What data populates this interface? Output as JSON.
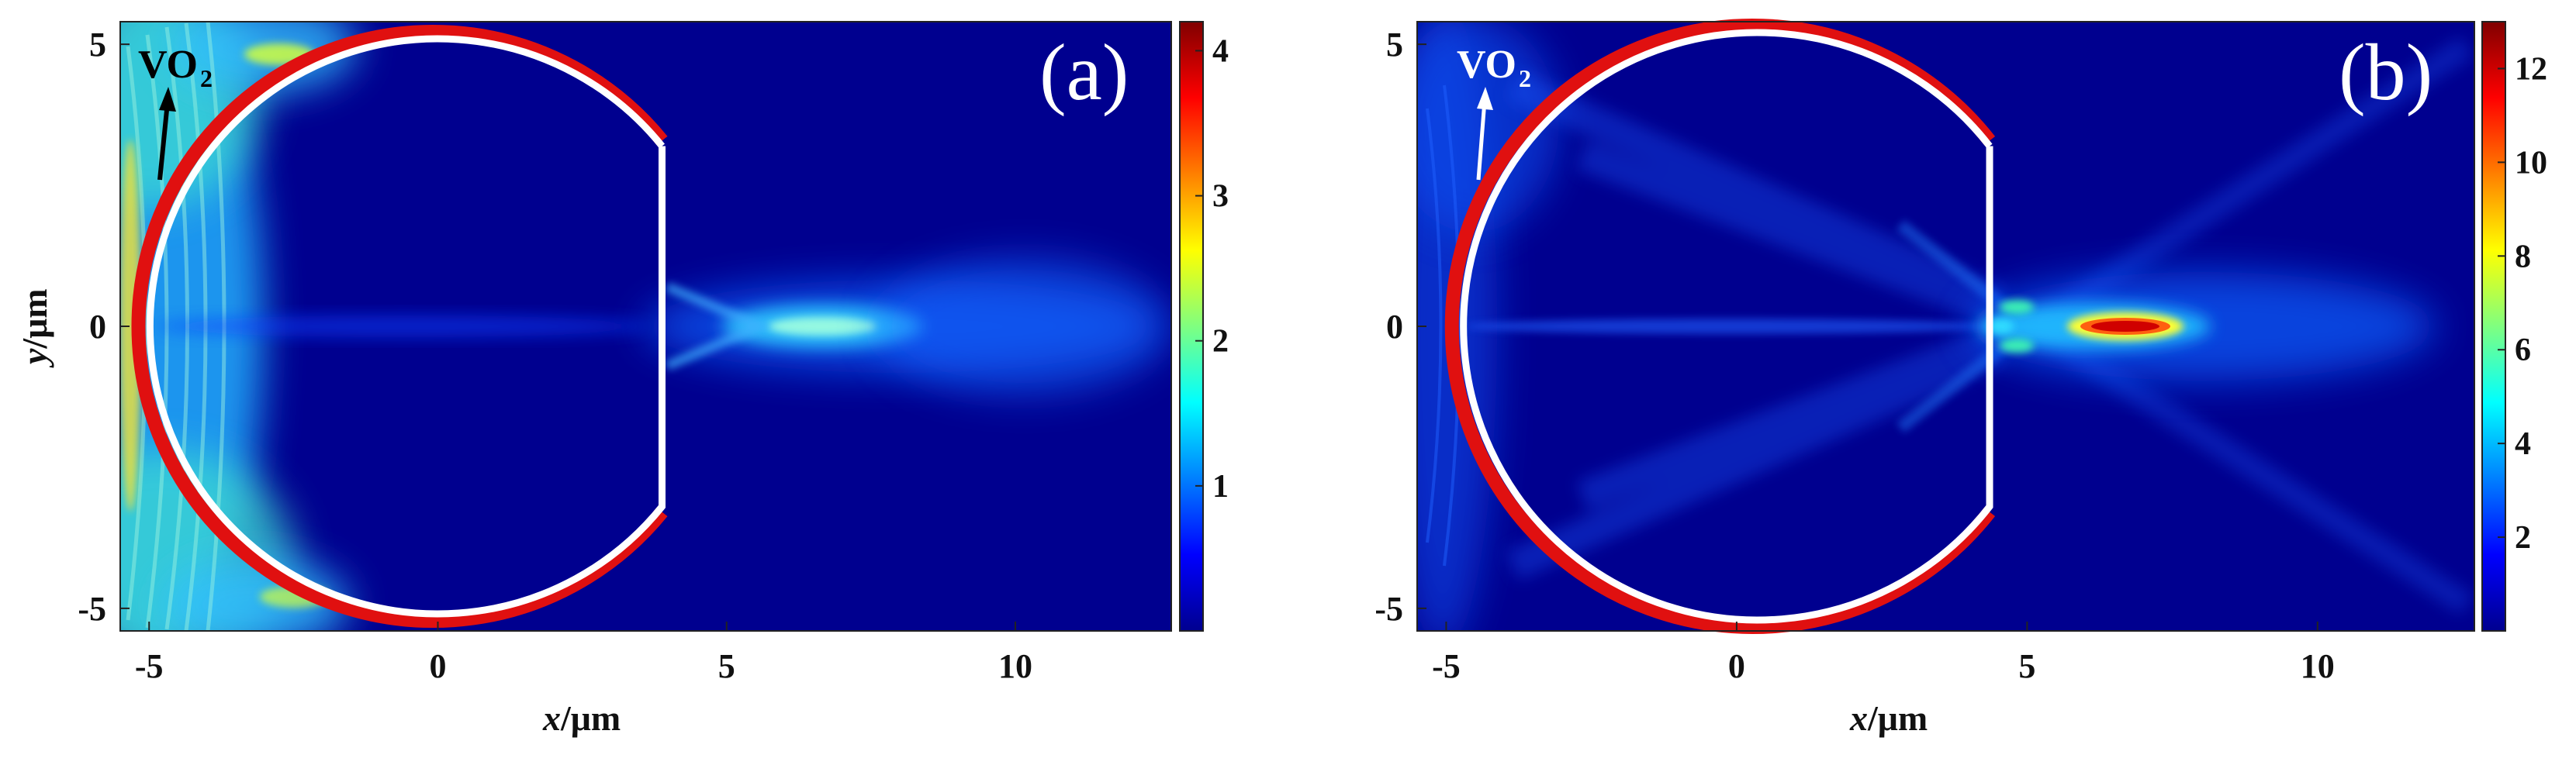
{
  "chart_data": [
    {
      "type": "heatmap",
      "panel_label": "(a)",
      "xlabel_var": "x",
      "xlabel_unit": "/μm",
      "ylabel_var": "y",
      "ylabel_unit": "/μm",
      "xlim": [
        -5.5,
        12.7
      ],
      "ylim": [
        -5.4,
        5.4
      ],
      "xticks": [
        -5,
        0,
        5,
        10
      ],
      "xtick_labels": [
        "-5",
        "0",
        "5",
        "10"
      ],
      "yticks": [
        -5,
        0,
        5
      ],
      "ytick_labels": [
        "-5",
        "0",
        "5"
      ],
      "colorbar": {
        "min": 0,
        "max": 4.2,
        "ticks": [
          1,
          2,
          3,
          4
        ],
        "tick_labels": [
          "1",
          "2",
          "3",
          "4"
        ],
        "colormap": "jet"
      },
      "annotation": {
        "text": "VO",
        "subscript": "2",
        "arrow_color": "#000000",
        "text_color": "#000000"
      },
      "lens": {
        "shape": "truncated-circle",
        "center": [
          0,
          0
        ],
        "radius": 5.2,
        "flat_cut_x": 3.9,
        "outline_color": "#ffffff",
        "coating_color": "#e01010"
      },
      "focus": {
        "x": 6.5,
        "y": 0,
        "peak_intensity": 1.6
      }
    },
    {
      "type": "heatmap",
      "panel_label": "(b)",
      "xlabel_var": "x",
      "xlabel_unit": "/μm",
      "ylabel_var": "",
      "ylabel_unit": "",
      "xlim": [
        -5.5,
        12.7
      ],
      "ylim": [
        -5.4,
        5.4
      ],
      "xticks": [
        -5,
        0,
        5,
        10
      ],
      "xtick_labels": [
        "-5",
        "0",
        "5",
        "10"
      ],
      "yticks": [
        -5,
        0,
        5
      ],
      "ytick_labels": [
        "-5",
        "0",
        "5"
      ],
      "colorbar": {
        "min": 0,
        "max": 13,
        "ticks": [
          2,
          4,
          6,
          8,
          10,
          12
        ],
        "tick_labels": [
          "2",
          "4",
          "6",
          "8",
          "10",
          "12"
        ],
        "colormap": "jet"
      },
      "annotation": {
        "text": "VO",
        "subscript": "2",
        "arrow_color": "#ffffff",
        "text_color": "#ffffff"
      },
      "lens": {
        "shape": "truncated-circle",
        "center": [
          0,
          0
        ],
        "radius": 5.2,
        "flat_cut_x": 4.1,
        "outline_color": "#ffffff",
        "coating_color": "#e01010"
      },
      "focus": {
        "x": 6.0,
        "y": 0,
        "peak_intensity": 12.5
      }
    }
  ]
}
